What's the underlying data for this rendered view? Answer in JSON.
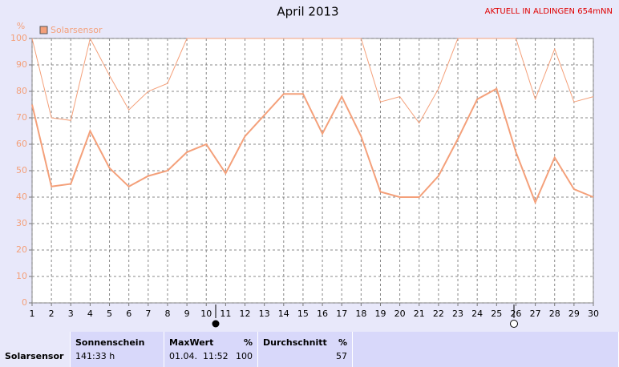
{
  "chart_data": {
    "type": "line",
    "title": "April 2013",
    "subtitle": "AKTUELL IN ALDINGEN 654mNN",
    "y_label": "%",
    "x": [
      1,
      2,
      3,
      4,
      5,
      6,
      7,
      8,
      9,
      10,
      11,
      12,
      13,
      14,
      15,
      16,
      17,
      18,
      19,
      20,
      21,
      22,
      23,
      24,
      25,
      26,
      27,
      28,
      29,
      30
    ],
    "series": [
      {
        "name": "Solarsensor",
        "color": "#f4a07a",
        "width": 2,
        "values": [
          75,
          44,
          45,
          65,
          51,
          44,
          48,
          50,
          57,
          60,
          49,
          63,
          71,
          79,
          79,
          64,
          78,
          63,
          42,
          40,
          40,
          48,
          62,
          77,
          81,
          57,
          38,
          55,
          43,
          40
        ]
      },
      {
        "color": "#f4a07a",
        "width": 1,
        "values": [
          100,
          70,
          69,
          100,
          86,
          73,
          80,
          83,
          100,
          100,
          100,
          100,
          100,
          100,
          100,
          100,
          100,
          100,
          76,
          78,
          68,
          81,
          100,
          100,
          100,
          100,
          77,
          96,
          76,
          78
        ]
      }
    ],
    "xlim": [
      1,
      30
    ],
    "xticks": [
      1,
      2,
      3,
      4,
      5,
      6,
      7,
      8,
      9,
      10,
      11,
      12,
      13,
      14,
      15,
      16,
      17,
      18,
      19,
      20,
      21,
      22,
      23,
      24,
      25,
      26,
      27,
      28,
      29,
      30
    ],
    "ylim": [
      0,
      100
    ],
    "yticks": [
      0,
      10,
      20,
      30,
      40,
      50,
      60,
      70,
      80,
      90,
      100
    ],
    "grid": true
  },
  "table": {
    "row_label": "Solarsensor",
    "sun": {
      "header": "Sonnenschein",
      "value": "141:33 h"
    },
    "max": {
      "header": "MaxWert",
      "unit": "%",
      "time": "01.04.  11:52",
      "value": "100"
    },
    "avg": {
      "header": "Durchschnitt",
      "unit": "%",
      "value": "57"
    }
  }
}
